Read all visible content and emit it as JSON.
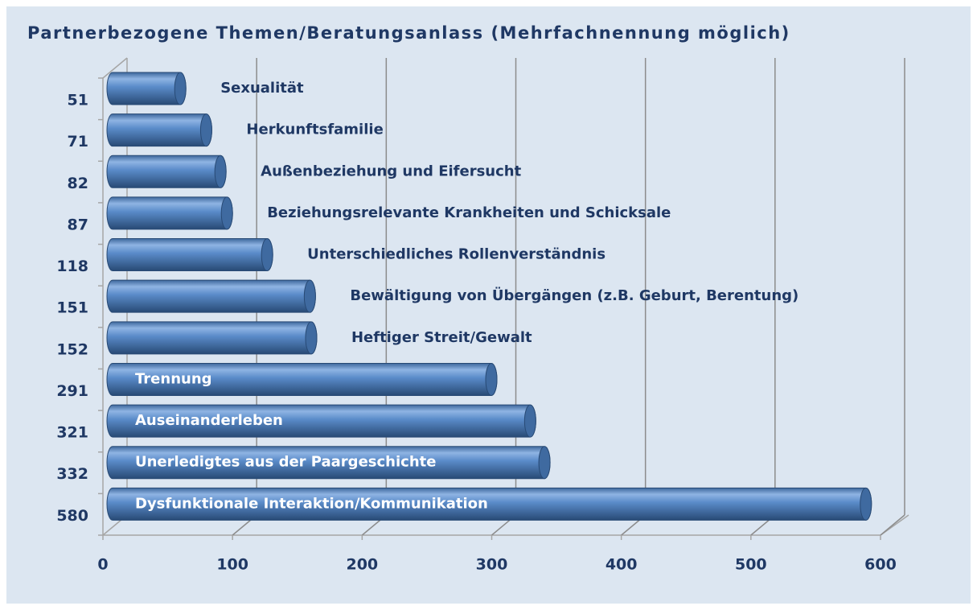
{
  "chart_data": {
    "type": "bar",
    "orientation": "horizontal",
    "title": "Partnerbezogene Themen/Beratungsanlass (Mehrfachnennung möglich)",
    "categories": [
      "Sexualität",
      "Herkunftsfamilie",
      "Außenbeziehung und Eifersucht",
      "Beziehungsrelevante Krankheiten und Schicksale",
      "Unterschiedliches Rollenverständnis",
      "Bewältigung von Übergängen (z.B. Geburt, Berentung)",
      "Heftiger Streit/Gewalt",
      "Trennung",
      "Auseinanderleben",
      "Unerledigtes aus  der Paargeschichte",
      "Dysfunktionale Interaktion/Kommunikation"
    ],
    "values": [
      51,
      71,
      82,
      87,
      118,
      151,
      152,
      291,
      321,
      332,
      580
    ],
    "color": "#4f81bd",
    "xlim": [
      0,
      600
    ],
    "xticks": [
      0,
      100,
      200,
      300,
      400,
      500,
      600
    ],
    "grid": true
  }
}
